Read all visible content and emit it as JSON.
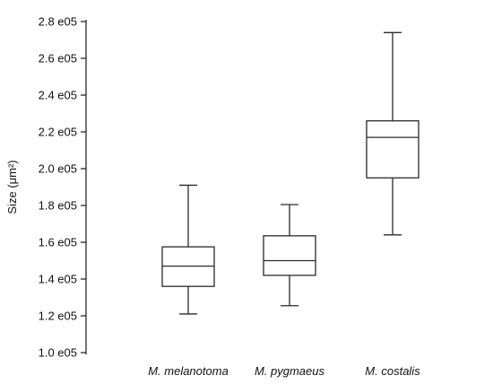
{
  "chart_data": {
    "type": "box",
    "ylabel": "Size (μm²)",
    "xlabel": "",
    "ylim": [
      100000.0,
      280000.0
    ],
    "y_ticks": [
      100000.0,
      120000.0,
      140000.0,
      160000.0,
      180000.0,
      200000.0,
      220000.0,
      240000.0,
      260000.0,
      280000.0
    ],
    "y_tick_labels": [
      "1.0 e05",
      "1.2 e05",
      "1.4 e05",
      "1.6 e05",
      "1.8 e05",
      "2.0 e05",
      "2.2 e05",
      "2.4 e05",
      "2.6 e05",
      "2.8 e05"
    ],
    "categories": [
      "M. melanotoma",
      "M. pygmaeus",
      "M. costalis"
    ],
    "boxes": [
      {
        "category": "M. melanotoma",
        "min": 121000,
        "q1": 136000,
        "median": 147000,
        "q3": 157500,
        "max": 191000
      },
      {
        "category": "M. pygmaeus",
        "min": 125500,
        "q1": 142000,
        "median": 150000,
        "q3": 163500,
        "max": 180500
      },
      {
        "category": "M. costalis",
        "min": 164000,
        "q1": 195000,
        "median": 217000,
        "q3": 226000,
        "max": 274000
      }
    ],
    "grid": false,
    "legend": "none"
  },
  "colors": {
    "stroke": "#2a2a2a",
    "text": "#111111",
    "background": "#ffffff"
  }
}
